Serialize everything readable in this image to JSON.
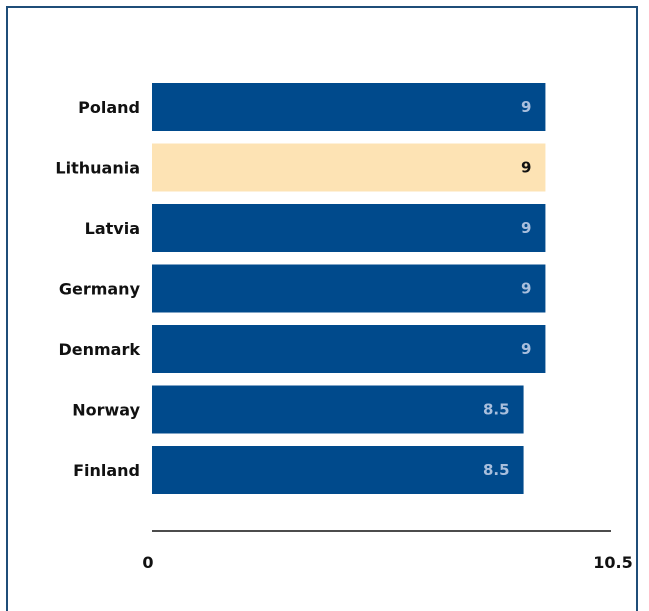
{
  "chart_data": {
    "type": "bar",
    "orientation": "horizontal",
    "categories": [
      "Poland",
      "Lithuania",
      "Latvia",
      "Germany",
      "Denmark",
      "Norway",
      "Finland"
    ],
    "values": [
      9,
      9,
      9,
      9,
      9,
      8.5,
      8.5
    ],
    "value_labels": [
      "9",
      "9",
      "9",
      "9",
      "9",
      "8.5",
      "8.5"
    ],
    "highlight_category": "Lithuania",
    "title": "",
    "xlabel": "",
    "ylabel": "",
    "xlim": [
      0,
      10.5
    ],
    "x_ticks": [
      "0",
      "10.5"
    ],
    "grid": false,
    "colors": {
      "bar": "#004a8c",
      "highlight_bar": "#fde3b4",
      "label_on_bar": "#a9bfdd",
      "label_on_highlight": "#111111",
      "frame": "#1f4e79"
    }
  }
}
